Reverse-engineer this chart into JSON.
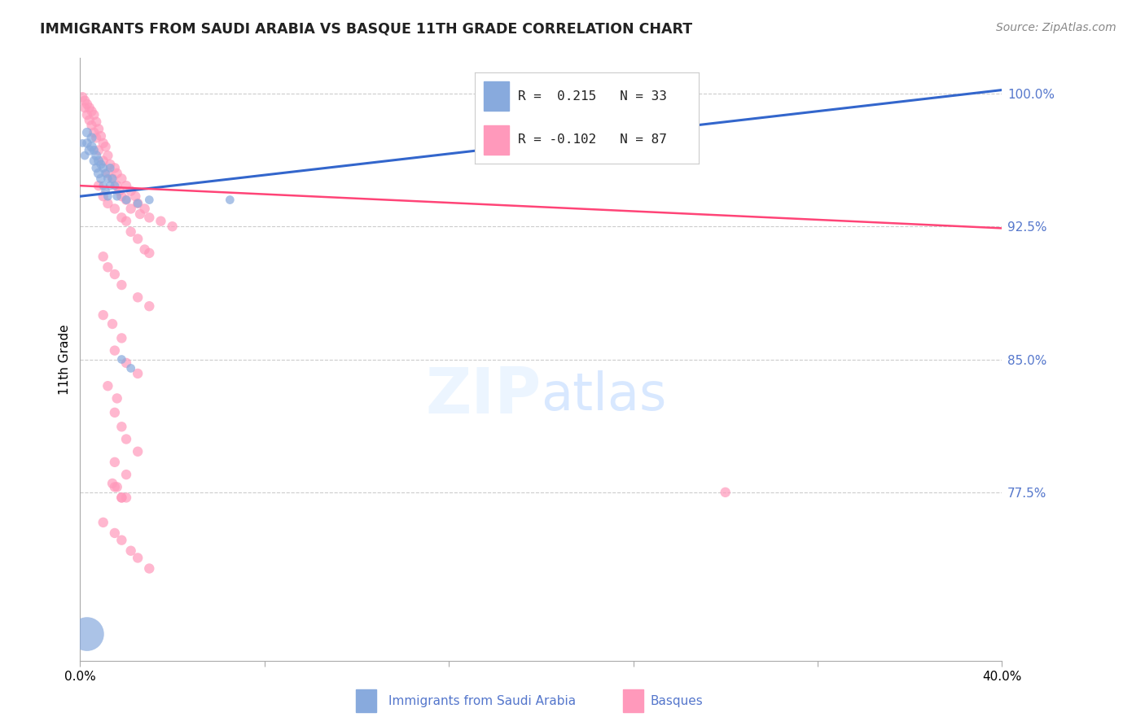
{
  "title": "IMMIGRANTS FROM SAUDI ARABIA VS BASQUE 11TH GRADE CORRELATION CHART",
  "source_text": "Source: ZipAtlas.com",
  "ylabel": "11th Grade",
  "xlim": [
    0.0,
    0.4
  ],
  "ylim": [
    0.68,
    1.02
  ],
  "yticks": [
    0.775,
    0.85,
    0.925,
    1.0
  ],
  "ytick_labels": [
    "77.5%",
    "85.0%",
    "92.5%",
    "100.0%"
  ],
  "xtick_positions": [
    0.0,
    0.08,
    0.16,
    0.24,
    0.32,
    0.4
  ],
  "xtick_labels": [
    "0.0%",
    "",
    "",
    "",
    "",
    "40.0%"
  ],
  "blue_color": "#88AADD",
  "pink_color": "#FF99BB",
  "blue_line_color": "#3366CC",
  "pink_line_color": "#FF4477",
  "blue_line_x0": 0.0,
  "blue_line_y0": 0.942,
  "blue_line_x1": 0.4,
  "blue_line_y1": 1.002,
  "pink_line_x0": 0.0,
  "pink_line_y0": 0.948,
  "pink_line_x1": 0.4,
  "pink_line_y1": 0.924,
  "blue_scatter_x": [
    0.001,
    0.002,
    0.003,
    0.003,
    0.004,
    0.005,
    0.005,
    0.006,
    0.006,
    0.007,
    0.007,
    0.008,
    0.008,
    0.009,
    0.009,
    0.01,
    0.01,
    0.011,
    0.011,
    0.012,
    0.012,
    0.013,
    0.013,
    0.014,
    0.015,
    0.016,
    0.02,
    0.025,
    0.03,
    0.065,
    0.018,
    0.022,
    0.003
  ],
  "blue_scatter_y": [
    0.972,
    0.965,
    0.972,
    0.978,
    0.968,
    0.975,
    0.97,
    0.962,
    0.968,
    0.958,
    0.965,
    0.955,
    0.962,
    0.952,
    0.96,
    0.948,
    0.958,
    0.945,
    0.955,
    0.942,
    0.952,
    0.948,
    0.958,
    0.952,
    0.948,
    0.942,
    0.94,
    0.938,
    0.94,
    0.94,
    0.85,
    0.845,
    0.695
  ],
  "blue_scatter_s": [
    50,
    60,
    70,
    75,
    80,
    75,
    80,
    70,
    65,
    70,
    75,
    80,
    75,
    70,
    65,
    60,
    65,
    60,
    60,
    60,
    60,
    60,
    60,
    60,
    60,
    60,
    60,
    60,
    60,
    60,
    60,
    60,
    900
  ],
  "pink_scatter_x": [
    0.001,
    0.002,
    0.002,
    0.003,
    0.003,
    0.004,
    0.004,
    0.005,
    0.005,
    0.006,
    0.006,
    0.007,
    0.007,
    0.008,
    0.008,
    0.009,
    0.01,
    0.01,
    0.011,
    0.012,
    0.012,
    0.013,
    0.014,
    0.015,
    0.016,
    0.016,
    0.017,
    0.018,
    0.018,
    0.02,
    0.02,
    0.022,
    0.022,
    0.024,
    0.025,
    0.026,
    0.028,
    0.03,
    0.035,
    0.04,
    0.008,
    0.01,
    0.012,
    0.015,
    0.018,
    0.02,
    0.022,
    0.025,
    0.028,
    0.03,
    0.01,
    0.012,
    0.015,
    0.018,
    0.025,
    0.03,
    0.01,
    0.014,
    0.018,
    0.015,
    0.02,
    0.025,
    0.012,
    0.016,
    0.015,
    0.018,
    0.02,
    0.025,
    0.015,
    0.02,
    0.014,
    0.018,
    0.016,
    0.02,
    0.015,
    0.018,
    0.28,
    0.01,
    0.015,
    0.018,
    0.022,
    0.025,
    0.03
  ],
  "pink_scatter_y": [
    0.998,
    0.996,
    0.992,
    0.994,
    0.988,
    0.992,
    0.985,
    0.99,
    0.982,
    0.988,
    0.978,
    0.984,
    0.975,
    0.98,
    0.968,
    0.976,
    0.972,
    0.962,
    0.97,
    0.965,
    0.955,
    0.96,
    0.952,
    0.958,
    0.948,
    0.955,
    0.945,
    0.952,
    0.942,
    0.948,
    0.94,
    0.945,
    0.935,
    0.942,
    0.938,
    0.932,
    0.935,
    0.93,
    0.928,
    0.925,
    0.948,
    0.942,
    0.938,
    0.935,
    0.93,
    0.928,
    0.922,
    0.918,
    0.912,
    0.91,
    0.908,
    0.902,
    0.898,
    0.892,
    0.885,
    0.88,
    0.875,
    0.87,
    0.862,
    0.855,
    0.848,
    0.842,
    0.835,
    0.828,
    0.82,
    0.812,
    0.805,
    0.798,
    0.792,
    0.785,
    0.78,
    0.772,
    0.778,
    0.772,
    0.778,
    0.772,
    0.775,
    0.758,
    0.752,
    0.748,
    0.742,
    0.738,
    0.732
  ]
}
